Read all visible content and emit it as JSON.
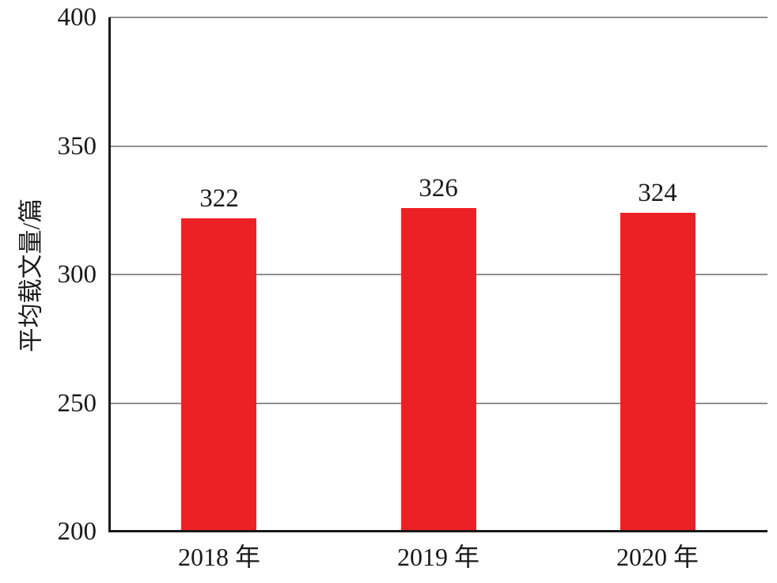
{
  "chart_data": {
    "type": "bar",
    "title": "",
    "categories": [
      "2018 年",
      "2019 年",
      "2020 年"
    ],
    "values": [
      322,
      326,
      324
    ],
    "series": [
      {
        "name": "平均载文量",
        "values": [
          322,
          326,
          324
        ]
      }
    ],
    "xlabel": "",
    "ylabel": "平均载文量/篇",
    "ylim": [
      200,
      400
    ],
    "yticks": [
      200,
      250,
      300,
      350,
      400
    ],
    "grid": "horizontal",
    "legend_position": "none",
    "bar_color": "#ec2125",
    "grid_color": "#8f8f8f",
    "axis_color": "#1a1a1a",
    "background_color": "#ffffff",
    "data_labels": [
      "322",
      "326",
      "324"
    ]
  }
}
